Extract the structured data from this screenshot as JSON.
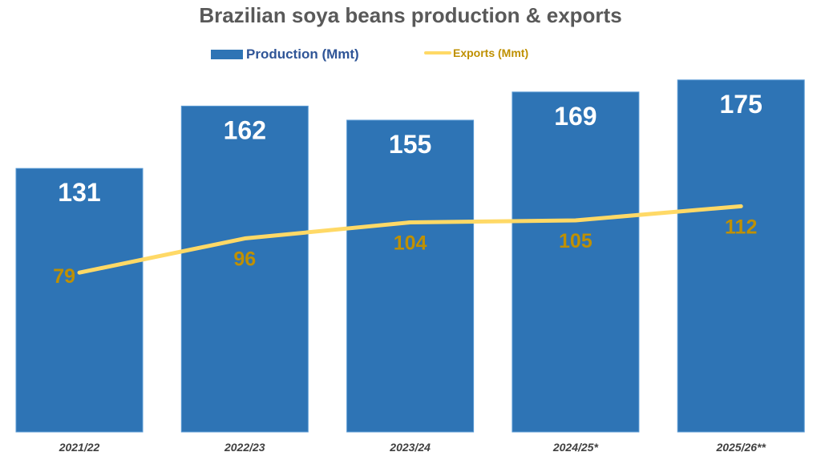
{
  "chart_data": {
    "type": "bar",
    "title": "Brazilian soya beans production & exports",
    "categories": [
      "2021/22",
      "2022/23",
      "2023/24",
      "2024/25*",
      "2025/26**"
    ],
    "series": [
      {
        "name": "Production (Mmt)",
        "type": "bar",
        "color": "#2E74B5",
        "values": [
          131,
          162,
          155,
          169,
          175
        ]
      },
      {
        "name": "Exports (Mmt)",
        "type": "line",
        "color": "#FFD966",
        "values": [
          79,
          96,
          104,
          105,
          112
        ]
      }
    ],
    "xlabel": "",
    "ylabel": "",
    "grid": false,
    "legend_position": "top"
  },
  "legend": {
    "production_label": "Production (Mmt)",
    "exports_label": "Exports (Mmt)"
  },
  "colors": {
    "bar": "#2E74B5",
    "line": "#FFD966",
    "export_label": "#BF9000",
    "title": "#595959"
  }
}
